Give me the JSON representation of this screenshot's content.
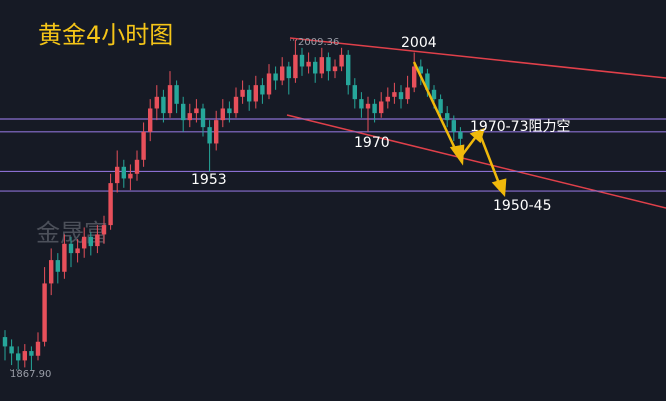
{
  "chart_data": {
    "type": "candlestick",
    "title": "黄金4小时图",
    "watermark": "金晟富",
    "up_color": "#e8505b",
    "down_color": "#26a69a",
    "ylim": [
      1854.6,
      2026.5
    ],
    "levels": [
      1975.5,
      1970,
      1953,
      1944.6
    ],
    "level_color": "#8a6fd1",
    "annotations": [
      "2009.36",
      "1867.90",
      "2004",
      "1970",
      "1953",
      "1970-73阻力空",
      "1950-45"
    ],
    "candles": [
      [
        1882,
        1885,
        1872,
        1878
      ],
      [
        1878,
        1881,
        1870,
        1875
      ],
      [
        1875,
        1878,
        1868,
        1872
      ],
      [
        1872,
        1879,
        1869,
        1876
      ],
      [
        1876,
        1878,
        1867.9,
        1874
      ],
      [
        1874,
        1884,
        1872,
        1880
      ],
      [
        1880,
        1912,
        1878,
        1905
      ],
      [
        1905,
        1920,
        1900,
        1915
      ],
      [
        1915,
        1918,
        1905,
        1910
      ],
      [
        1910,
        1926,
        1907,
        1922
      ],
      [
        1922,
        1925,
        1912,
        1918
      ],
      [
        1918,
        1924,
        1914,
        1920
      ],
      [
        1920,
        1929,
        1916,
        1925
      ],
      [
        1925,
        1927,
        1917,
        1921
      ],
      [
        1921,
        1930,
        1918,
        1926
      ],
      [
        1926,
        1934,
        1922,
        1930
      ],
      [
        1930,
        1952,
        1928,
        1948
      ],
      [
        1948,
        1962,
        1944,
        1955
      ],
      [
        1955,
        1958,
        1946,
        1950
      ],
      [
        1950,
        1956,
        1945,
        1952
      ],
      [
        1952,
        1962,
        1949,
        1958
      ],
      [
        1958,
        1974,
        1955,
        1970
      ],
      [
        1970,
        1984,
        1966,
        1980
      ],
      [
        1980,
        1990,
        1975,
        1985
      ],
      [
        1985,
        1988,
        1974,
        1978
      ],
      [
        1978,
        1996,
        1976,
        1990
      ],
      [
        1990,
        1992,
        1978,
        1982
      ],
      [
        1982,
        1985,
        1970,
        1975
      ],
      [
        1975,
        1982,
        1972,
        1978
      ],
      [
        1978,
        1984,
        1974,
        1980
      ],
      [
        1980,
        1982,
        1968,
        1972
      ],
      [
        1972,
        1975,
        1953,
        1965
      ],
      [
        1965,
        1979,
        1962,
        1975
      ],
      [
        1975,
        1984,
        1972,
        1980
      ],
      [
        1980,
        1983,
        1974,
        1978
      ],
      [
        1978,
        1989,
        1976,
        1985
      ],
      [
        1985,
        1992,
        1982,
        1988
      ],
      [
        1988,
        1990,
        1979,
        1983
      ],
      [
        1983,
        1994,
        1980,
        1990
      ],
      [
        1990,
        1993,
        1982,
        1986
      ],
      [
        1986,
        1999,
        1984,
        1995
      ],
      [
        1995,
        1998,
        1988,
        1992
      ],
      [
        1992,
        2002,
        1990,
        1998
      ],
      [
        1998,
        2000,
        1986,
        1993
      ],
      [
        1993,
        2009.36,
        1991,
        2003
      ],
      [
        2003,
        2006,
        1994,
        1998
      ],
      [
        1998,
        2004,
        1995,
        2000
      ],
      [
        2000,
        2002,
        1991,
        1995
      ],
      [
        1995,
        2006,
        1993,
        2002
      ],
      [
        2002,
        2004,
        1992,
        1996
      ],
      [
        1996,
        2001,
        1993,
        1998
      ],
      [
        1998,
        2006,
        1996,
        2003
      ],
      [
        2003,
        2005,
        1986,
        1990
      ],
      [
        1990,
        1993,
        1980,
        1984
      ],
      [
        1984,
        1987,
        1976,
        1980
      ],
      [
        1980,
        1985,
        1970,
        1982
      ],
      [
        1982,
        1984,
        1974,
        1978
      ],
      [
        1978,
        1987,
        1976,
        1983
      ],
      [
        1983,
        1989,
        1980,
        1985
      ],
      [
        1985,
        1991,
        1982,
        1987
      ],
      [
        1987,
        1990,
        1980,
        1984
      ],
      [
        1984,
        1994,
        1982,
        1989
      ],
      [
        1989,
        2004,
        1987,
        1998
      ],
      [
        1998,
        2001,
        1990,
        1995
      ],
      [
        1995,
        1997,
        1985,
        1988
      ],
      [
        1988,
        1990,
        1980,
        1984
      ],
      [
        1984,
        1986,
        1975,
        1978
      ],
      [
        1978,
        1981,
        1972,
        1975
      ],
      [
        1975,
        1977,
        1966,
        1970
      ],
      [
        1970,
        1972,
        1962,
        1967
      ]
    ]
  }
}
